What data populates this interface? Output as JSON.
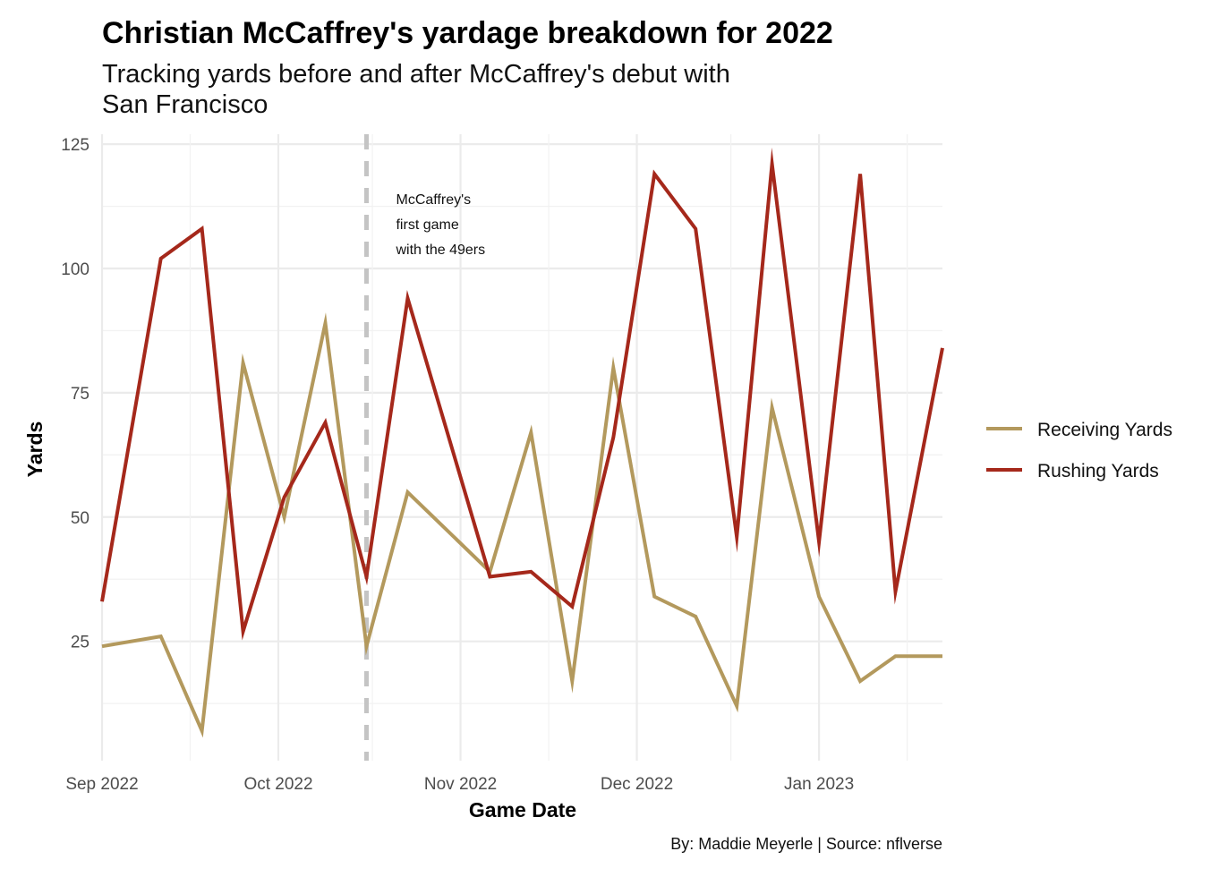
{
  "chart_data": {
    "type": "line",
    "title": "Christian McCaffrey's yardage breakdown for 2022",
    "subtitle_lines": [
      "Tracking yards before and after McCaffrey's debut with",
      "San Francisco"
    ],
    "xlabel": "Game Date",
    "ylabel": "Yards",
    "caption": "By: Maddie Meyerle | Source: nflverse",
    "x_ticks": [
      "Sep 2022",
      "Oct 2022",
      "Nov 2022",
      "Dec 2022",
      "Jan 2023"
    ],
    "y_ticks": [
      "25",
      "50",
      "75",
      "100",
      "125"
    ],
    "ylim": [
      1,
      127
    ],
    "xlim": [
      "2022-09-01",
      "2023-01-22"
    ],
    "grid": true,
    "legend_position": "right",
    "annotation": {
      "date": "2022-10-16",
      "lines": [
        "McCaffrey's",
        "first game",
        "with the 49ers"
      ]
    },
    "x": [
      "2022-09-01",
      "2022-09-11",
      "2022-09-18",
      "2022-09-25",
      "2022-10-02",
      "2022-10-09",
      "2022-10-16",
      "2022-10-23",
      "2022-11-06",
      "2022-11-13",
      "2022-11-20",
      "2022-11-27",
      "2022-12-04",
      "2022-12-11",
      "2022-12-18",
      "2022-12-24",
      "2023-01-01",
      "2023-01-08",
      "2023-01-14",
      "2023-01-22"
    ],
    "series": [
      {
        "name": "Receiving Yards",
        "color": "#B3995D",
        "values": [
          24,
          26,
          7,
          81,
          50,
          89,
          24,
          55,
          39,
          67,
          17,
          80,
          34,
          30,
          12,
          72,
          34,
          17,
          22,
          22
        ]
      },
      {
        "name": "Rushing Yards",
        "color": "#A5281B",
        "values": [
          33,
          102,
          108,
          27,
          54,
          69,
          38,
          94,
          38,
          39,
          32,
          66,
          119,
          108,
          46,
          121,
          45,
          119,
          35,
          84
        ]
      }
    ]
  }
}
